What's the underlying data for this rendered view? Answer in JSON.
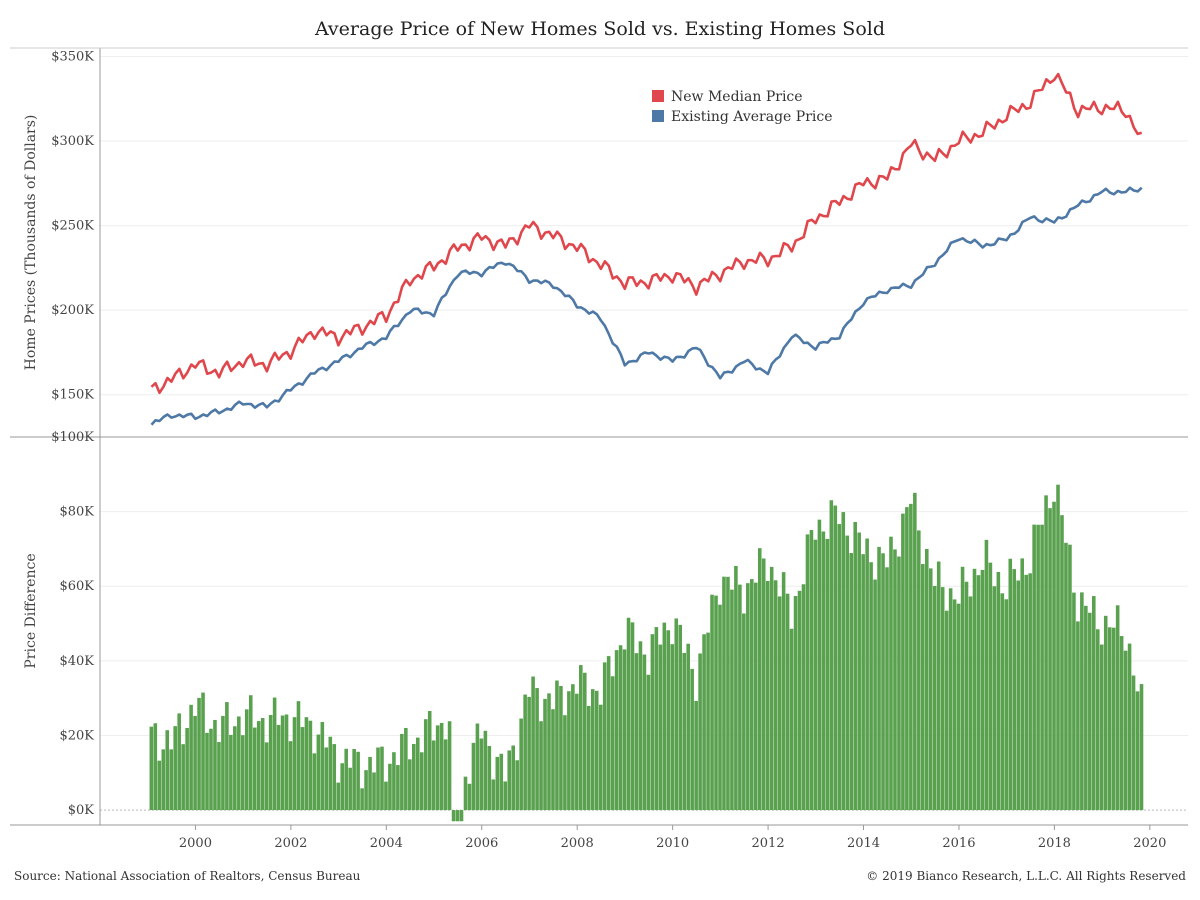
{
  "title": "Average Price of New Homes Sold vs. Existing Homes Sold",
  "footer": {
    "source": "Source: National Association of Realtors, Census Bureau",
    "copyright": "© 2019 Bianco Research, L.L.C. All Rights Reserved"
  },
  "colors": {
    "new": "#e0474c",
    "existing": "#4e79a7",
    "diff": "#59a14f"
  },
  "chart_data": [
    {
      "type": "line",
      "ylabel": "Home Prices (Thousands of Dollars)",
      "xlabel": "",
      "ylim": [
        125,
        355
      ],
      "xlim": [
        1998,
        2020.8
      ],
      "grid": true,
      "legend_position": "top-right",
      "y_ticks": [
        {
          "value": 150,
          "label": "$150K"
        },
        {
          "value": 200,
          "label": "$200K"
        },
        {
          "value": 250,
          "label": "$250K"
        },
        {
          "value": 300,
          "label": "$300K"
        },
        {
          "value": 350,
          "label": "$350K"
        }
      ],
      "series": [
        {
          "name": "New Median Price",
          "x": [
            1999.08,
            1999.5,
            2000.0,
            2000.5,
            2001.0,
            2001.5,
            2002.0,
            2002.5,
            2003.0,
            2003.5,
            2004.0,
            2004.5,
            2005.0,
            2005.5,
            2006.0,
            2006.5,
            2007.0,
            2007.5,
            2008.0,
            2008.5,
            2009.0,
            2009.5,
            2010.0,
            2010.5,
            2011.0,
            2011.5,
            2012.0,
            2012.5,
            2013.0,
            2013.5,
            2014.0,
            2014.5,
            2015.0,
            2015.5,
            2016.0,
            2016.5,
            2017.0,
            2017.5,
            2018.0,
            2018.5,
            2019.0,
            2019.5,
            2019.83
          ],
          "values": [
            153,
            159,
            168,
            163,
            170,
            168,
            176,
            188,
            184,
            190,
            197,
            218,
            226,
            237,
            243,
            238,
            250,
            244,
            237,
            227,
            216,
            217,
            221,
            214,
            222,
            229,
            230,
            238,
            254,
            264,
            275,
            278,
            298,
            289,
            300,
            305,
            315,
            323,
            340,
            318,
            320,
            318,
            300
          ]
        },
        {
          "name": "Existing Average Price",
          "x": [
            1999.08,
            1999.5,
            2000.0,
            2000.5,
            2001.0,
            2001.5,
            2002.0,
            2002.5,
            2003.0,
            2003.5,
            2004.0,
            2004.5,
            2005.0,
            2005.5,
            2006.0,
            2006.5,
            2007.0,
            2007.5,
            2008.0,
            2008.5,
            2009.0,
            2009.5,
            2010.0,
            2010.5,
            2011.0,
            2011.5,
            2012.0,
            2012.5,
            2013.0,
            2013.5,
            2014.0,
            2014.5,
            2015.0,
            2015.5,
            2016.0,
            2016.5,
            2017.0,
            2017.5,
            2018.0,
            2018.5,
            2019.0,
            2019.5,
            2019.83
          ],
          "values": [
            133,
            138,
            137,
            140,
            145,
            143,
            153,
            163,
            170,
            178,
            184,
            200,
            198,
            222,
            222,
            229,
            218,
            215,
            203,
            195,
            168,
            175,
            170,
            178,
            160,
            170,
            163,
            185,
            178,
            185,
            205,
            212,
            215,
            228,
            243,
            238,
            242,
            255,
            252,
            262,
            270,
            270,
            272
          ]
        }
      ]
    },
    {
      "type": "bar",
      "ylabel": "Price Difference",
      "xlabel": "",
      "ylim": [
        -4,
        100
      ],
      "xlim": [
        1998,
        2020.8
      ],
      "grid": true,
      "y_ticks": [
        {
          "value": 0,
          "label": "$0K"
        },
        {
          "value": 20,
          "label": "$20K"
        },
        {
          "value": 40,
          "label": "$40K"
        },
        {
          "value": 60,
          "label": "$60K"
        },
        {
          "value": 80,
          "label": "$80K"
        },
        {
          "value": 100,
          "label": "$100K"
        }
      ],
      "x_ticks": [
        {
          "value": 2000,
          "label": "2000"
        },
        {
          "value": 2002,
          "label": "2002"
        },
        {
          "value": 2004,
          "label": "2004"
        },
        {
          "value": 2006,
          "label": "2006"
        },
        {
          "value": 2008,
          "label": "2008"
        },
        {
          "value": 2010,
          "label": "2010"
        },
        {
          "value": 2012,
          "label": "2012"
        },
        {
          "value": 2014,
          "label": "2014"
        },
        {
          "value": 2016,
          "label": "2016"
        },
        {
          "value": 2018,
          "label": "2018"
        },
        {
          "value": 2020,
          "label": "2020"
        }
      ],
      "x": [
        1999.08,
        1999.5,
        2000.0,
        2000.5,
        2001.0,
        2001.5,
        2002.0,
        2002.5,
        2003.0,
        2003.5,
        2004.0,
        2004.5,
        2005.0,
        2005.3,
        2005.5,
        2005.7,
        2006.0,
        2006.5,
        2007.0,
        2007.5,
        2008.0,
        2008.5,
        2009.0,
        2009.5,
        2010.0,
        2010.5,
        2011.0,
        2011.5,
        2012.0,
        2012.5,
        2013.0,
        2013.5,
        2014.0,
        2014.5,
        2015.0,
        2015.5,
        2016.0,
        2016.5,
        2017.0,
        2017.5,
        2018.0,
        2018.5,
        2019.0,
        2019.5,
        2019.83
      ],
      "values": [
        20,
        18,
        28,
        22,
        25,
        24,
        25,
        22,
        14,
        12,
        13,
        18,
        22,
        25,
        -3,
        12,
        21,
        9,
        32,
        29,
        34,
        32,
        48,
        42,
        51,
        36,
        62,
        59,
        67,
        53,
        76,
        79,
        70,
        66,
        83,
        61,
        57,
        67,
        60,
        68,
        88,
        56,
        50,
        48,
        27
      ]
    }
  ]
}
